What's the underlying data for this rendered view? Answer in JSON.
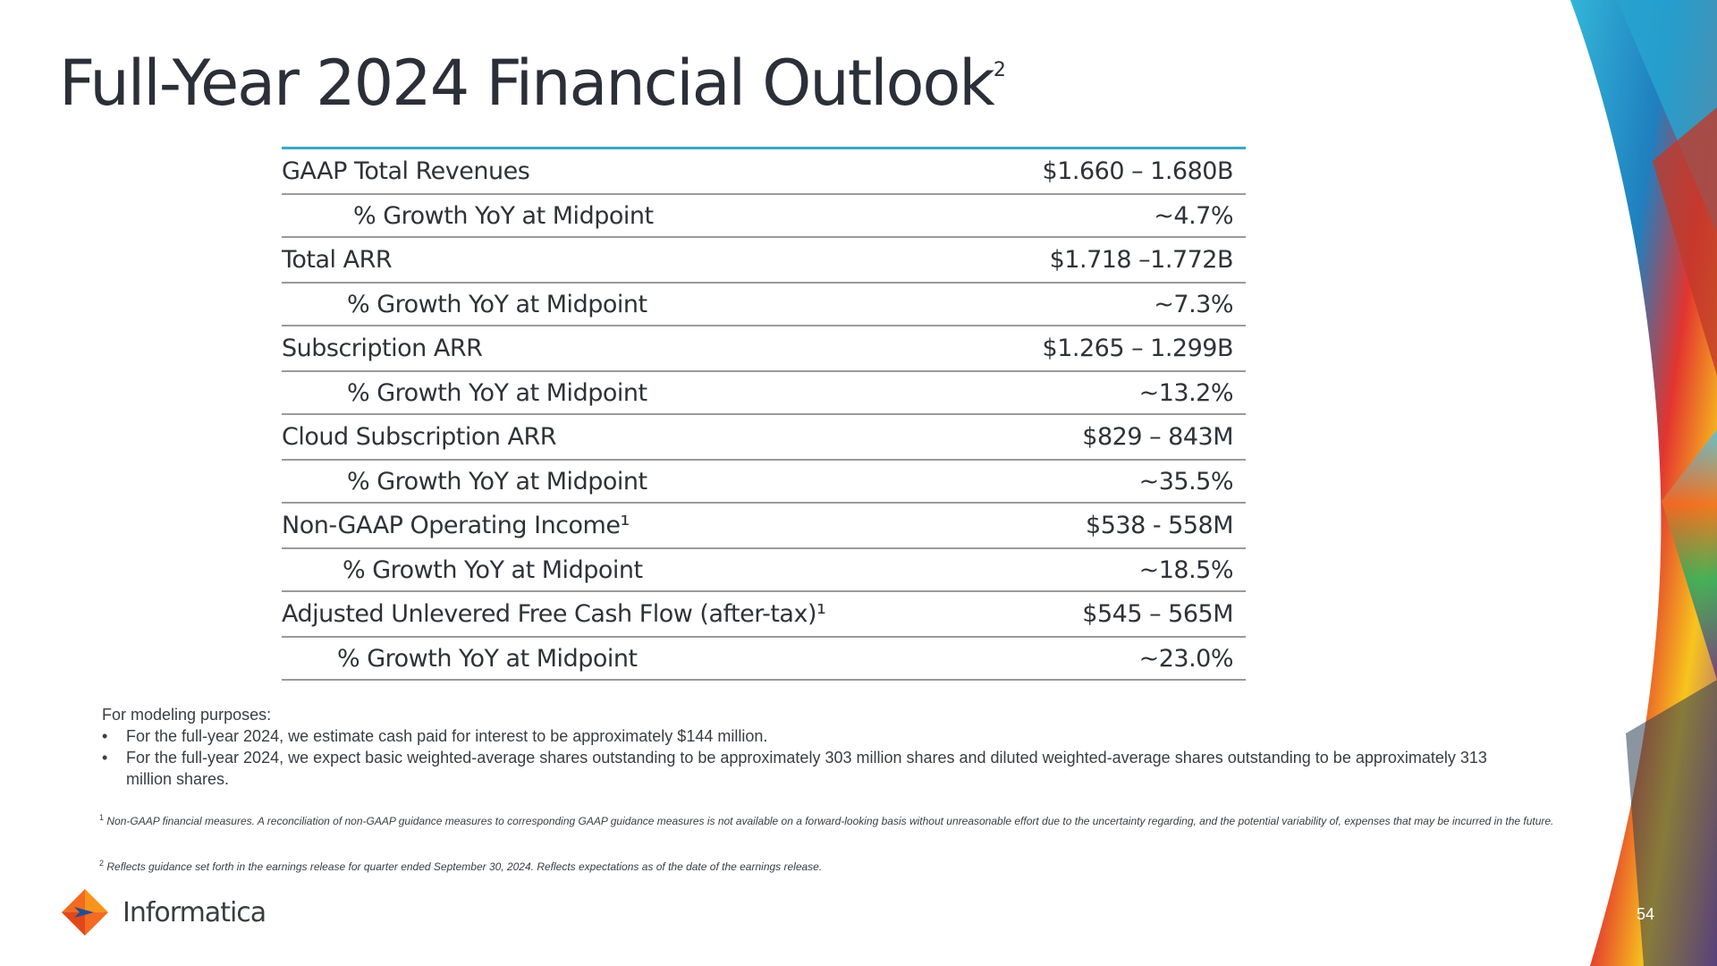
{
  "slide": {
    "title": "Full-Year 2024 Financial Outlook",
    "title_superscript": "2",
    "page_number": "54"
  },
  "outlook_table": [
    {
      "label": "GAAP Total Revenues",
      "value": "$1.660 – 1.680B",
      "type": "main"
    },
    {
      "label": "%  Growth YoY at Midpoint",
      "value": "~4.7%",
      "type": "sub",
      "indent": 80
    },
    {
      "label": "Total ARR",
      "value": "$1.718 –1.772B",
      "type": "main"
    },
    {
      "label": "%  Growth YoY at Midpoint",
      "value": "~7.3%",
      "type": "sub",
      "indent": 73
    },
    {
      "label": "Subscription ARR",
      "value": "$1.265 – 1.299B",
      "type": "main"
    },
    {
      "label": "%  Growth YoY at Midpoint",
      "value": "~13.2%",
      "type": "sub",
      "indent": 73
    },
    {
      "label": "Cloud Subscription ARR",
      "value": "$829 – 843M",
      "type": "main"
    },
    {
      "label": "% Growth YoY at Midpoint",
      "value": "~35.5%",
      "type": "sub",
      "indent": 73
    },
    {
      "label": "Non-GAAP Operating Income¹",
      "value": "$538 - 558M",
      "type": "main"
    },
    {
      "label": "% Growth YoY at Midpoint",
      "value": "~18.5%",
      "type": "sub",
      "indent": 68
    },
    {
      "label": "Adjusted Unlevered Free Cash Flow (after-tax)¹",
      "value": "$545 – 565M",
      "type": "main"
    },
    {
      "label": "% Growth YoY at Midpoint",
      "value": "~23.0%",
      "type": "sub",
      "indent": 62
    }
  ],
  "modeling": {
    "heading": "For modeling purposes:",
    "bullet_symbol": "•",
    "bullets": [
      "For the full-year 2024, we estimate cash paid for interest to be approximately $144 million.",
      "For the full-year 2024, we expect basic weighted-average shares outstanding to be approximately 303 million shares and diluted weighted-average shares outstanding to be approximately 313 million shares."
    ]
  },
  "footnotes": [
    {
      "mark": "1",
      "text": "Non-GAAP financial measures. A reconciliation of non-GAAP guidance measures to corresponding GAAP guidance measures is not available on a forward-looking basis without unreasonable effort due to the uncertainty regarding, and the potential variability of, expenses that may be incurred in the future."
    },
    {
      "mark": "2",
      "text": "Reflects guidance set forth in the earnings release for quarter ended September 30, 2024. Reflects expectations as of the date of the earnings release."
    }
  ],
  "logo": {
    "text": "Informatica",
    "icon": "informatica-diamond-icon"
  },
  "colors": {
    "table_top_rule": "#3aa7c4",
    "row_rule": "#9a9a9a",
    "title": "#2a2f38",
    "logo_orange": "#f26b21"
  }
}
